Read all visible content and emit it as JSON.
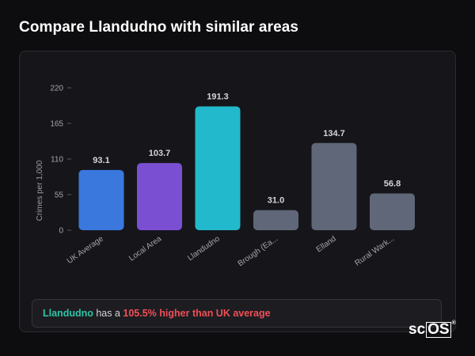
{
  "page": {
    "title": "Compare Llandudno with similar areas"
  },
  "chart_data": {
    "type": "bar",
    "ylabel": "Crimes per 1,000",
    "ylim": [
      0,
      220
    ],
    "yticks": [
      0,
      55,
      110,
      165,
      220
    ],
    "categories": [
      "UK Average",
      "Local Area",
      "Llandudno",
      "Brough (Ea...",
      "Elland",
      "Rural Wark..."
    ],
    "values": [
      93.1,
      103.7,
      191.3,
      31.0,
      134.7,
      56.8
    ],
    "value_labels": [
      "93.1",
      "103.7",
      "191.3",
      "31.0",
      "134.7",
      "56.8"
    ],
    "colors": [
      "#3a78dd",
      "#7b4fd2",
      "#22b9cc",
      "#5f6778",
      "#5f6778",
      "#5f6778"
    ],
    "grid": false,
    "legend": "none"
  },
  "summary": {
    "place": "Llandudno",
    "middle": " has a ",
    "stat": "105.5% higher than UK average",
    "colors": {
      "place": "#2ec4a6",
      "stat": "#ef4f57"
    }
  },
  "logo": {
    "prefix": "sc",
    "boxed": "OS",
    "mark": "®"
  }
}
